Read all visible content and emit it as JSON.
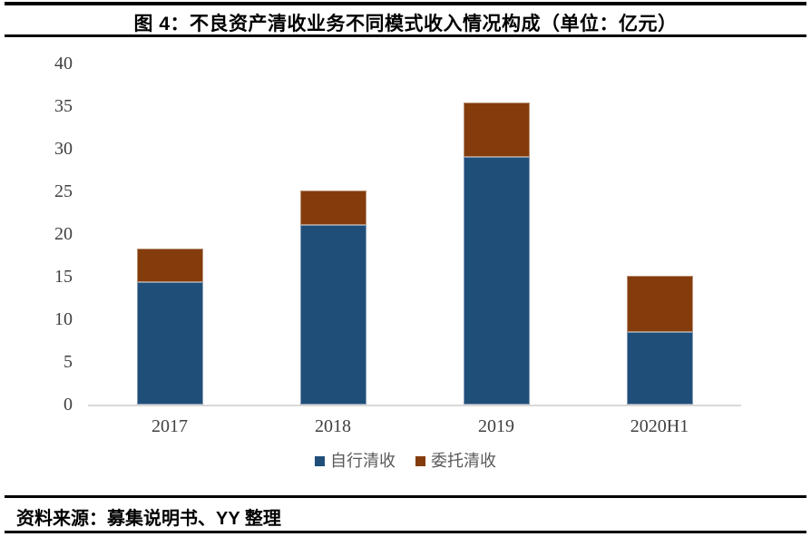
{
  "figure": {
    "title": "图 4：不良资产清收业务不同模式收入情况构成（单位：亿元）",
    "source": "资料来源：募集说明书、YY 整理"
  },
  "chart_data": {
    "type": "bar",
    "stacked": true,
    "title": "不良资产清收业务不同模式收入情况构成",
    "unit": "亿元",
    "categories": [
      "2017",
      "2018",
      "2019",
      "2020H1"
    ],
    "series": [
      {
        "name": "自行清收",
        "color": "#1F4E79",
        "values": [
          14.4,
          21.1,
          29.0,
          8.5
        ]
      },
      {
        "name": "委托清收",
        "color": "#843C0C",
        "values": [
          3.9,
          4.0,
          6.4,
          6.6
        ]
      }
    ],
    "xlabel": "",
    "ylabel": "",
    "ylim": [
      0,
      40
    ],
    "yticks": [
      0,
      5,
      10,
      15,
      20,
      25,
      30,
      35,
      40
    ],
    "grid": false,
    "legend_position": "bottom",
    "colors": {
      "axis_line": "#D9D9D9",
      "tick_label": "#404040",
      "legend_label": "#595959",
      "title_text": "#000000",
      "source_text": "#000000"
    }
  }
}
